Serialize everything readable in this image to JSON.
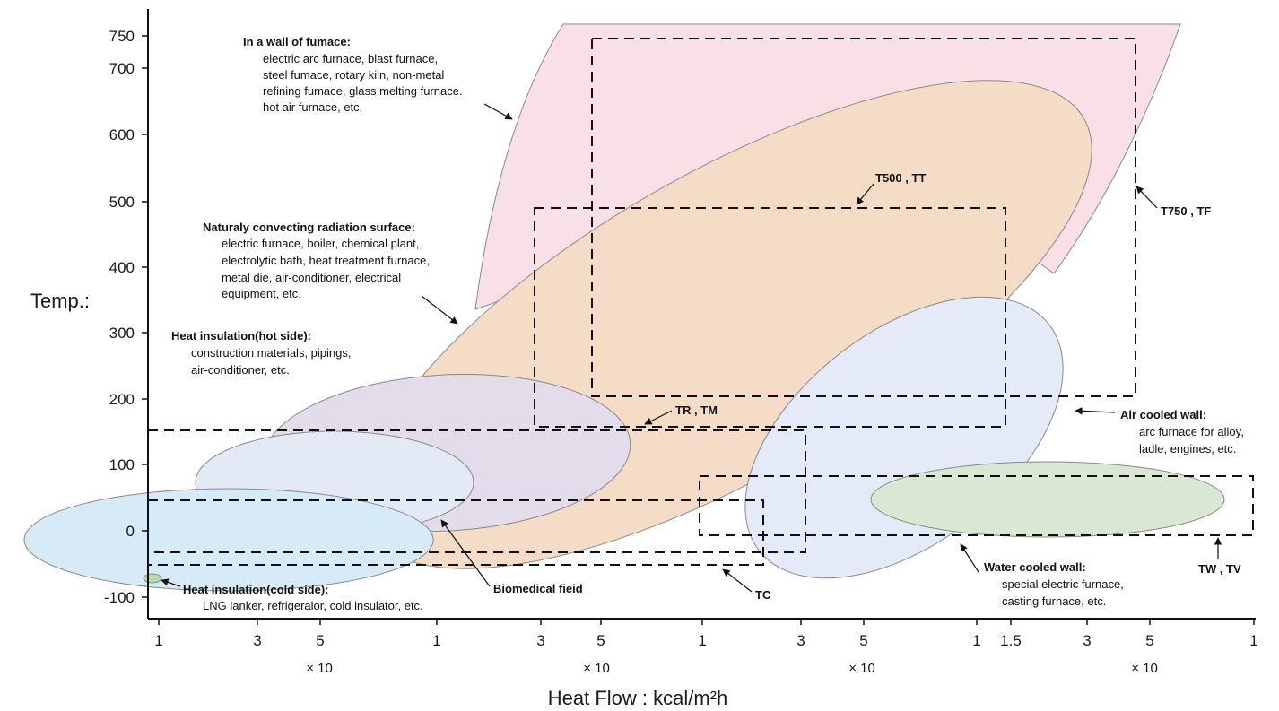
{
  "y_axis": {
    "label": "Temp.:",
    "ticks": [
      "750",
      "700",
      "600",
      "500",
      "400",
      "300",
      "200",
      "100",
      "0",
      "-100"
    ]
  },
  "x_axis": {
    "label": "Heat Flow : kcal/m²h",
    "ticks": [
      "1",
      "3",
      "5",
      "1",
      "3",
      "5",
      "1",
      "3",
      "5",
      "1",
      "1.5",
      "3",
      "5",
      "1"
    ],
    "multipliers": [
      "× 10",
      "× 10",
      "× 10",
      "× 10"
    ]
  },
  "regions": {
    "furnace_wall": {
      "title": "In a wall of fumace:",
      "lines": [
        "electric arc furnace, blast furnace,",
        "steel fumace, rotary kiln, non-metal",
        "refining fumace, glass melting furnace.",
        "hot air furnace, etc."
      ],
      "color": "#f9e0e6"
    },
    "natural_convection": {
      "title": "Naturaly convecting radiation surface:",
      "lines": [
        "electric furnace, boiler, chemical plant,",
        "electrolytic bath, heat treatment furnace,",
        "metal die, air-conditioner, electrical",
        "equipment, etc."
      ],
      "color": "#f5dcc6"
    },
    "hot_insulation": {
      "title": "Heat insulation(hot side):",
      "lines": [
        "construction materials, pipings,",
        "air-conditioner, etc."
      ],
      "color": "#e3dcea"
    },
    "cold_insulation": {
      "title": "Heat insulation(cold side):",
      "lines": [
        "LNG lanker, refrigeralor, cold insulator, etc."
      ],
      "color": "#d6eaf7"
    },
    "biomedical": {
      "title": "Biomedical fieid",
      "color": "#e4eaf5"
    },
    "air_cooled": {
      "title": "Air cooled wall:",
      "lines": [
        "arc furnace for alloy,",
        "ladle, engines, etc."
      ],
      "color": "#e4eaf7"
    },
    "water_cooled": {
      "title": "Water cooled wall:",
      "lines": [
        "special electric furnace,",
        "casting furnace, etc."
      ],
      "color": "#d8e8d2"
    }
  },
  "sensor_boxes": {
    "t750": "T750 , TF",
    "t500": "T500 , TT",
    "tr": "TR , TM",
    "tc": "TC",
    "tw": "TW , TV"
  }
}
